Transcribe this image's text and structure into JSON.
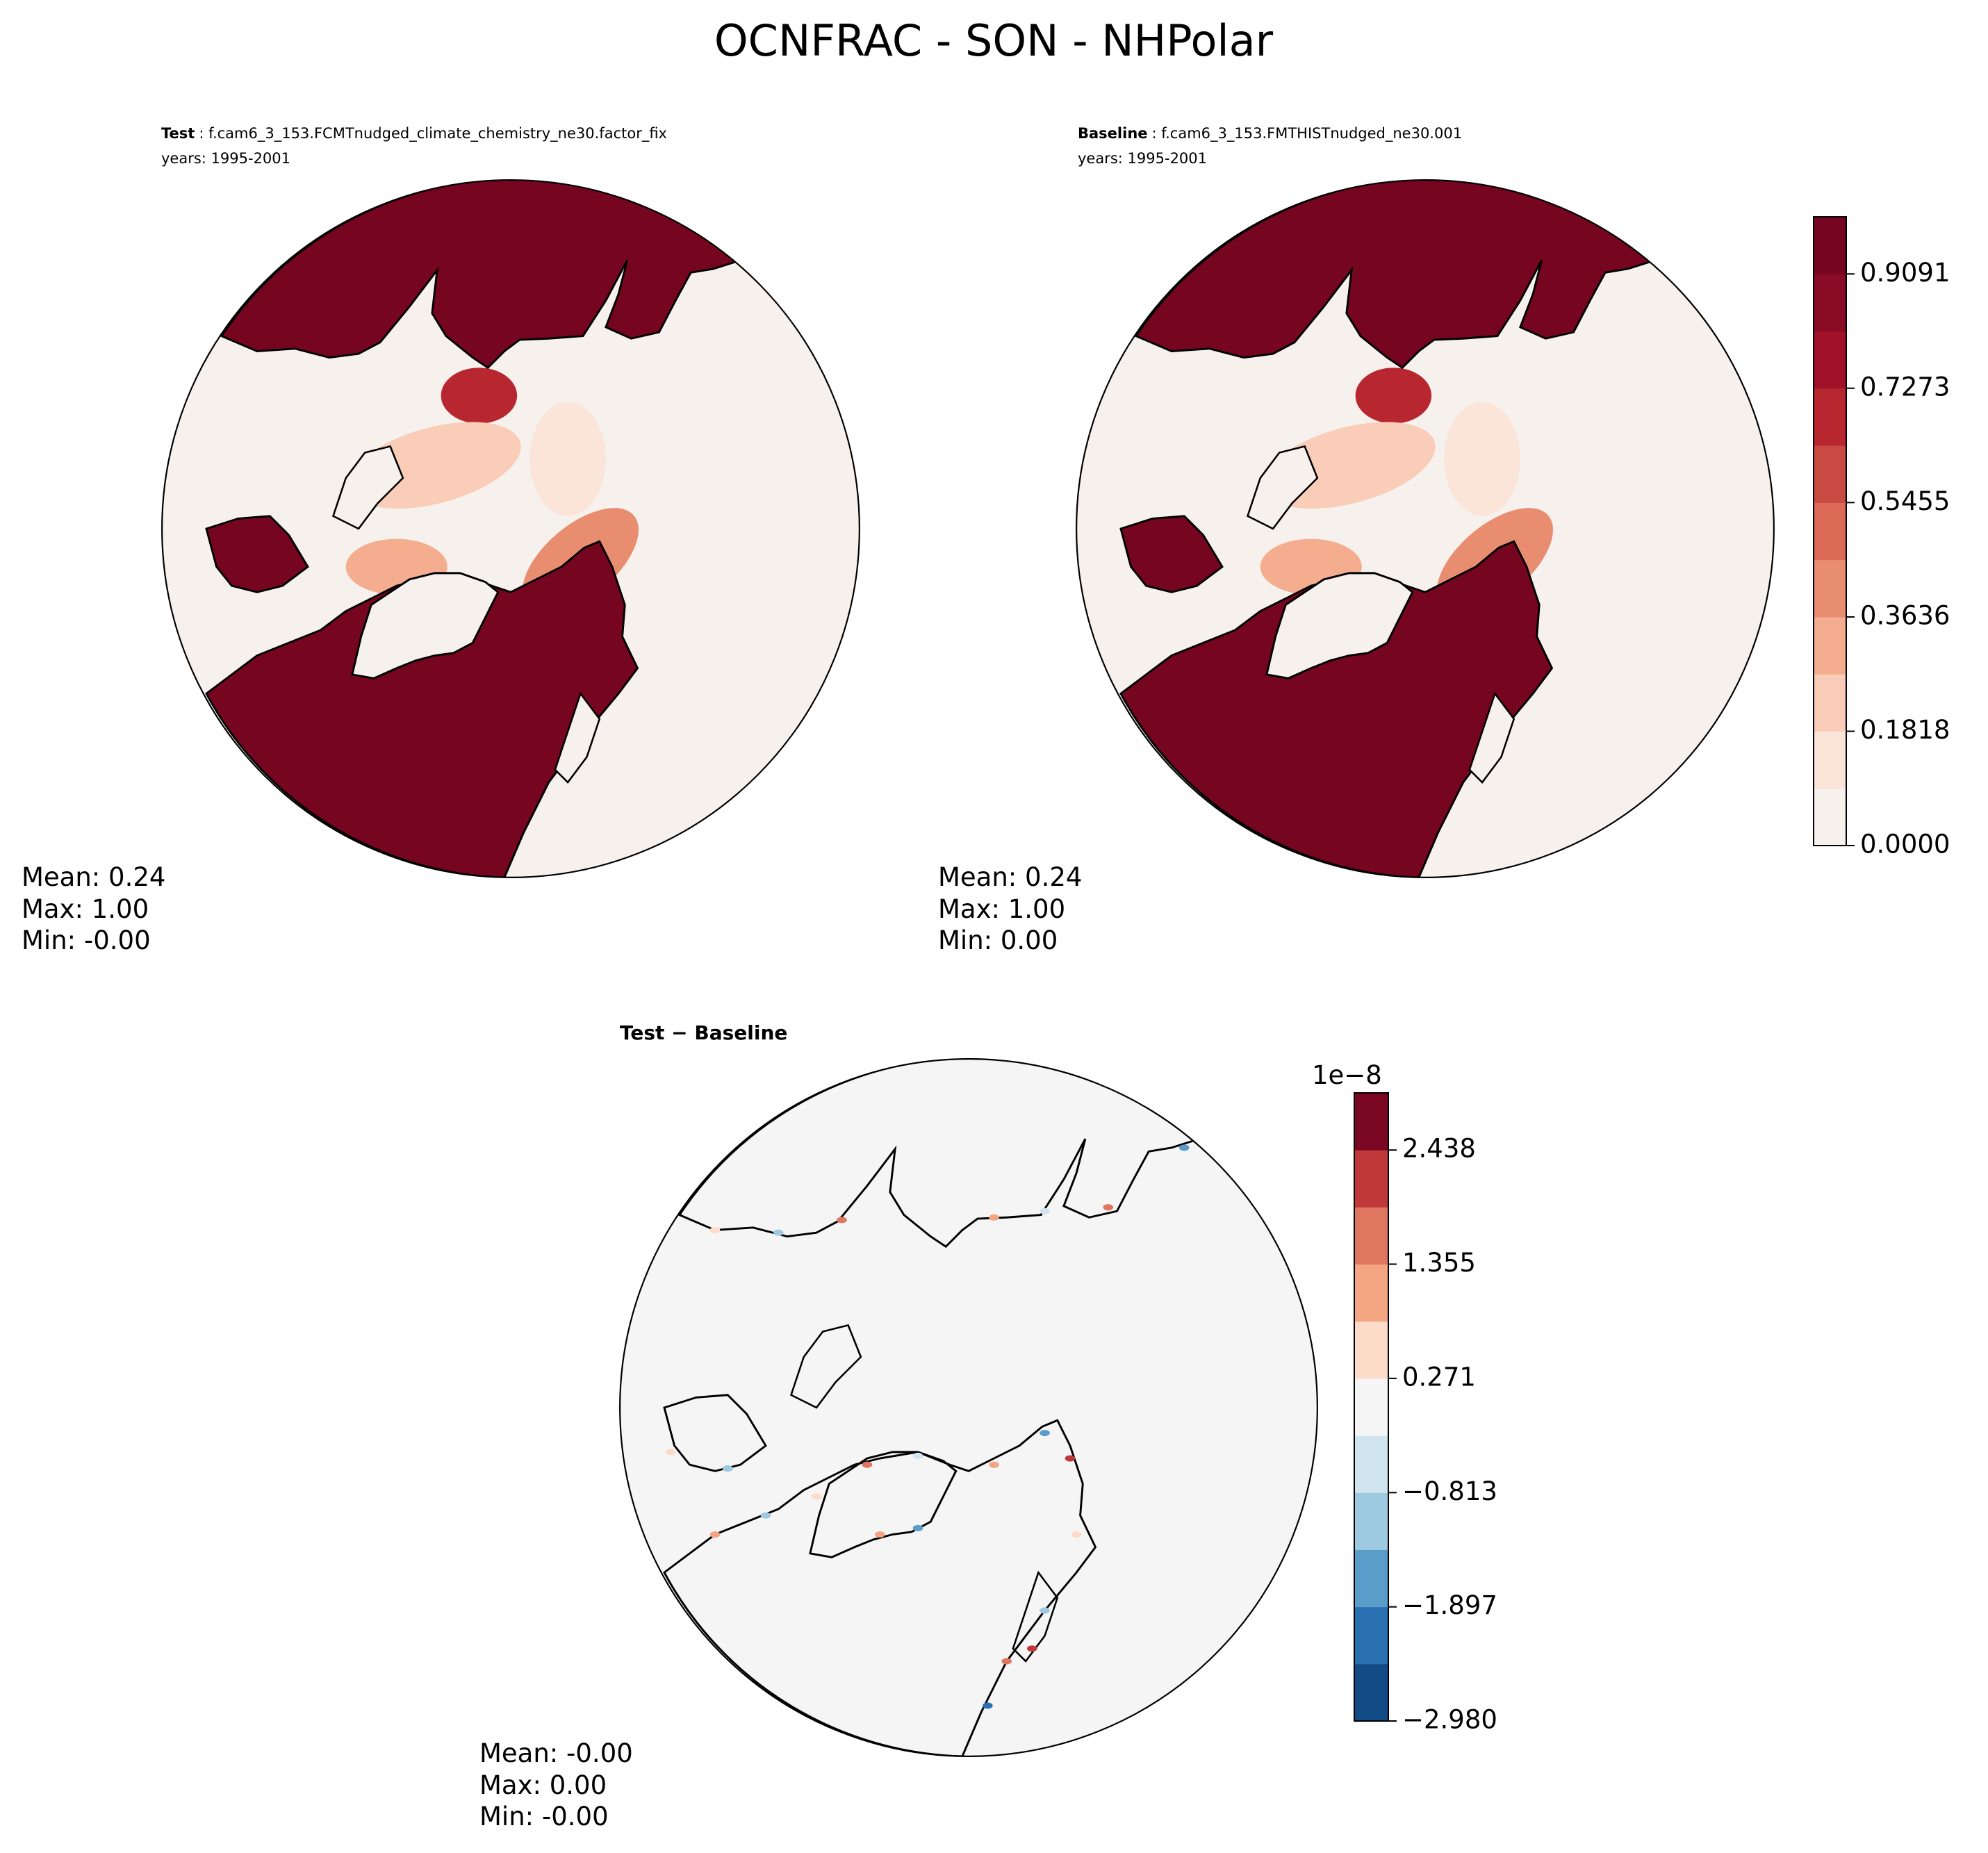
{
  "title": "OCNFRAC - SON - NHPolar",
  "chart_data": [
    {
      "type": "map",
      "title_bold": "Test",
      "title": ": f.cam6_3_153.FCMTnudged_climate_chemistry_ne30.factor_fix",
      "subtitle": "years: 1995-2001",
      "stats": [
        "Mean:  0.24",
        "Max:  1.00",
        "Min: -0.00"
      ]
    },
    {
      "type": "map",
      "title_bold": "Baseline",
      "title": ": f.cam6_3_153.FMTHISTnudged_ne30.001",
      "subtitle": "years: 1995-2001",
      "stats": [
        "Mean:  0.24",
        "Max:  1.00",
        "Min:  0.00"
      ],
      "colorbar": {
        "clim": [
          0,
          1
        ],
        "colors": [
          "#f7f1ee",
          "#fbe4d8",
          "#f9cdb7",
          "#f4ad8e",
          "#e88d70",
          "#da6a55",
          "#c94a42",
          "#b8272f",
          "#a11228",
          "#8a0b25",
          "#760520"
        ],
        "ticks": [
          {
            "value": 0,
            "label": "0.0000"
          },
          0.1818,
          0.3636,
          0.5455,
          0.7273,
          0.9091
        ]
      }
    },
    {
      "type": "map",
      "title_bold": "Test − Baseline",
      "stats": [
        "Mean: -0.00",
        "Max:  0.00",
        "Min: -0.00"
      ],
      "colorbar": {
        "clim": [
          -2.98,
          2.98
        ],
        "offset": "1e−8",
        "colors": [
          "#134b86",
          "#2a71b2",
          "#5a9dcb",
          "#9ecae1",
          "#d1e5f0",
          "#f5f5f5",
          "#fcdbc8",
          "#f4a582",
          "#de7660",
          "#c0383a",
          "#7a0822"
        ],
        "ticks": [
          {
            "value": -2.98,
            "label": "−2.980"
          },
          {
            "value": -1.897,
            "label": "−1.897"
          },
          {
            "value": -0.813,
            "label": "−0.813"
          },
          0.271,
          1.355,
          2.438
        ]
      }
    }
  ]
}
